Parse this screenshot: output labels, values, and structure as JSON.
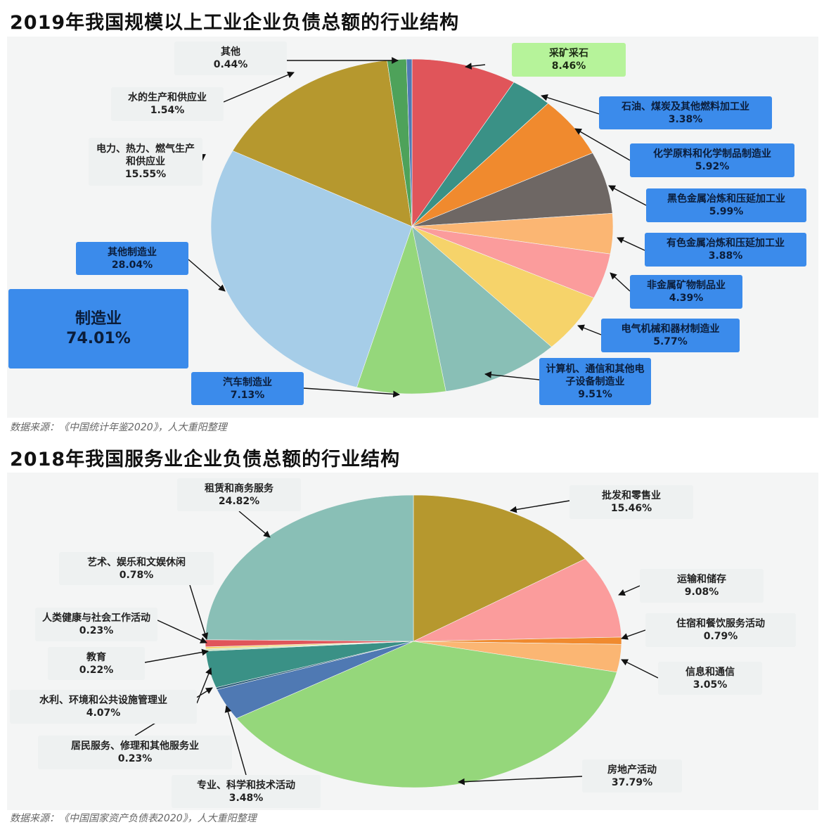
{
  "chart_data": [
    {
      "type": "pie",
      "title": "2019年我国规模以上工业企业负债总额的行业结构",
      "source": "数据来源：《中国统计年鉴2020》，人大重阳整理",
      "highlight": {
        "label": "制造业",
        "value": "74.01%"
      },
      "slices": [
        {
          "label": "采矿采石",
          "value": 8.46,
          "color": "#e0555a"
        },
        {
          "label": "石油、煤炭及其他燃料加工业",
          "value": 3.38,
          "color": "#3a9186"
        },
        {
          "label": "化学原料和化学制品制造业",
          "value": 5.92,
          "color": "#f08a2e"
        },
        {
          "label": "黑色金属冶炼和压延加工业",
          "value": 5.99,
          "color": "#6e6764"
        },
        {
          "label": "有色金属冶炼和压延加工业",
          "value": 3.88,
          "color": "#fbb673"
        },
        {
          "label": "非金属矿物制品业",
          "value": 4.39,
          "color": "#fb9c9c"
        },
        {
          "label": "电气机械和器材制造业",
          "value": 5.77,
          "color": "#f6d36a"
        },
        {
          "label": "计算机、通信和其他电子设备制造业",
          "value": 9.51,
          "color": "#89bfb6"
        },
        {
          "label": "汽车制造业",
          "value": 7.13,
          "color": "#95d77b"
        },
        {
          "label": "其他制造业",
          "value": 28.04,
          "color": "#a6cde8"
        },
        {
          "label": "电力、热力、燃气生产和供应业",
          "value": 15.55,
          "color": "#b6982e"
        },
        {
          "label": "水的生产和供应业",
          "value": 1.54,
          "color": "#4ea25a"
        },
        {
          "label": "其他",
          "value": 0.44,
          "color": "#4f79b3"
        }
      ]
    },
    {
      "type": "pie",
      "title": "2018年我国服务业企业负债总额的行业结构",
      "source": "数据来源：《中国国家资产负债表2020》，人大重阳整理",
      "slices": [
        {
          "label": "批发和零售业",
          "value": 15.46,
          "color": "#b6982e"
        },
        {
          "label": "运输和储存",
          "value": 9.08,
          "color": "#fb9c9c"
        },
        {
          "label": "住宿和餐饮服务活动",
          "value": 0.79,
          "color": "#f08a2e"
        },
        {
          "label": "信息和通信",
          "value": 3.05,
          "color": "#fbb673"
        },
        {
          "label": "房地产活动",
          "value": 37.79,
          "color": "#95d77b"
        },
        {
          "label": "专业、科学和技术活动",
          "value": 3.48,
          "color": "#4f79b3"
        },
        {
          "label": "居民服务、修理和其他服务业",
          "value": 0.23,
          "color": "#2f5f7a"
        },
        {
          "label": "水利、环境和公共设施管理业",
          "value": 4.07,
          "color": "#3a9186"
        },
        {
          "label": "教育",
          "value": 0.22,
          "color": "#c8e6c0"
        },
        {
          "label": "人类健康与社会工作活动",
          "value": 0.23,
          "color": "#f6d36a"
        },
        {
          "label": "艺术、娱乐和文娱休闲",
          "value": 0.78,
          "color": "#e0555a"
        },
        {
          "label": "租赁和商务服务",
          "value": 24.82,
          "color": "#89bfb6"
        }
      ]
    }
  ]
}
